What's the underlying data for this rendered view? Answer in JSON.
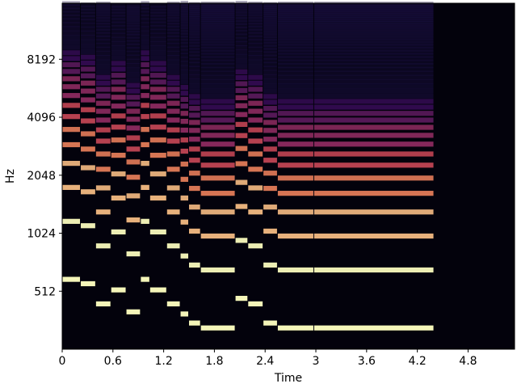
{
  "chart_data": {
    "type": "spectrogram",
    "x_label": "Time",
    "y_label": "Hz",
    "xlim": [
      0,
      5.35
    ],
    "xticks": [
      0,
      0.6,
      1.2,
      1.8,
      2.4,
      3,
      3.6,
      4.2,
      4.8
    ],
    "ylim": [
      256,
      16000
    ],
    "yticks": [
      512,
      1024,
      2048,
      4096,
      8192
    ],
    "y_scale": "log",
    "background": "#03020c",
    "colormap": [
      "#1d1147",
      "#51127c",
      "#822681",
      "#b73779",
      "#e75263",
      "#fc8961",
      "#fec287",
      "#fcfdbf"
    ],
    "notes": [
      {
        "start": 0,
        "end": 0.22,
        "f0": 590
      },
      {
        "start": 0.22,
        "end": 0.4,
        "f0": 560
      },
      {
        "start": 0.4,
        "end": 0.58,
        "f0": 440
      },
      {
        "start": 0.58,
        "end": 0.76,
        "f0": 520
      },
      {
        "start": 0.76,
        "end": 0.93,
        "f0": 400
      },
      {
        "start": 0.93,
        "end": 1.04,
        "f0": 590
      },
      {
        "start": 1.04,
        "end": 1.24,
        "f0": 520
      },
      {
        "start": 1.24,
        "end": 1.4,
        "f0": 440
      },
      {
        "start": 1.4,
        "end": 1.5,
        "f0": 390
      },
      {
        "start": 1.5,
        "end": 1.64,
        "f0": 350
      },
      {
        "start": 1.64,
        "end": 2.05,
        "f0": 330
      },
      {
        "start": 2.05,
        "end": 2.2,
        "f0": 470
      },
      {
        "start": 2.2,
        "end": 2.38,
        "f0": 440
      },
      {
        "start": 2.38,
        "end": 2.55,
        "f0": 350
      },
      {
        "start": 2.55,
        "end": 2.98,
        "f0": 330
      },
      {
        "start": 2.98,
        "end": 4.4,
        "f0": 330
      }
    ]
  }
}
